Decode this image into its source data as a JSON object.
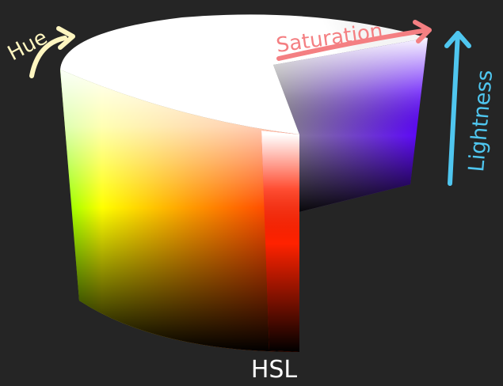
{
  "title": "HSL",
  "labels": {
    "hue": "Hue",
    "saturation": "Saturation",
    "lightness": "Lightness"
  },
  "colors": {
    "background": "#252525",
    "hue_label": "#fff6c0",
    "saturation_label": "#f47f82",
    "lightness_label": "#4fc6ef",
    "title": "#ffffff"
  },
  "icons": {
    "hue": "curved-arrow-icon",
    "saturation": "right-arrow-icon",
    "lightness": "up-arrow-icon"
  }
}
